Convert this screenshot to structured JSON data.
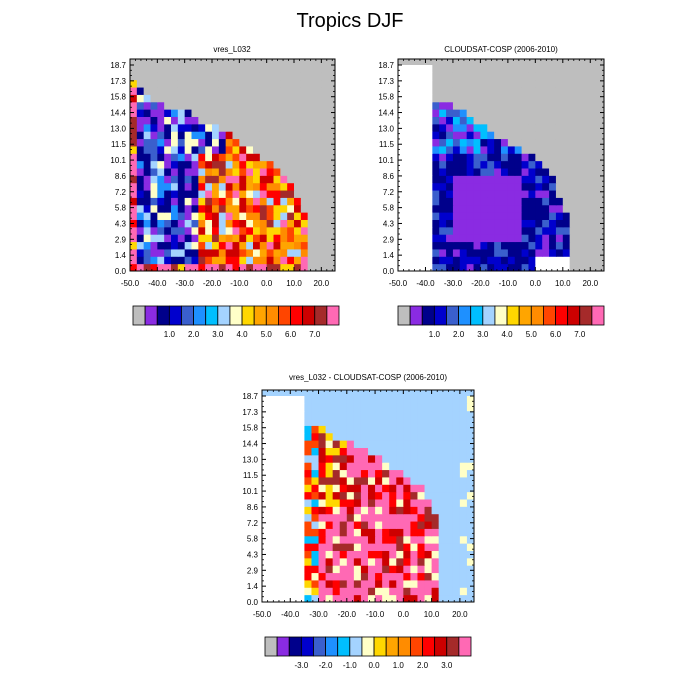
{
  "figure": {
    "title": "Tropics DJF"
  },
  "colors": {
    "palette": [
      "#bebebe",
      "#8a2be2",
      "#00008b",
      "#0000cd",
      "#3a5fcd",
      "#1e90ff",
      "#00bfff",
      "#a4d3ff",
      "#ffffc8",
      "#ffd700",
      "#ffa500",
      "#ff8c00",
      "#ff4500",
      "#ff0000",
      "#cd0000",
      "#a52a2a",
      "#ff69b4"
    ],
    "missing": "#bebebe",
    "outside": "#ffffff"
  },
  "chart_data": [
    {
      "type": "heatmap",
      "title": "vres_L032",
      "x_ticks": [
        "-50.0",
        "-40.0",
        "-30.0",
        "-20.0",
        "-10.0",
        "0.0",
        "10.0",
        "20.0"
      ],
      "y_ticks": [
        "0.0",
        "1.4",
        "2.9",
        "4.3",
        "5.8",
        "7.2",
        "8.6",
        "10.1",
        "11.5",
        "13.0",
        "14.4",
        "15.8",
        "17.3",
        "18.7"
      ],
      "xlim": [
        -50,
        25
      ],
      "x_edges": [
        -50,
        -47.5,
        -45,
        -42.5,
        -40,
        -37.5,
        -35,
        -32.5,
        -30,
        -27.5,
        -25,
        -22.5,
        -20,
        -17.5,
        -15,
        -12.5,
        -10,
        -7.5,
        -5,
        -2.5,
        0,
        2.5,
        5,
        7.5,
        10,
        12.5,
        15,
        17.5,
        20,
        22.5,
        25
      ],
      "colorbar_labels": [
        "1.0",
        "2.0",
        "3.0",
        "4.0",
        "5.0",
        "6.0",
        "7.0"
      ],
      "rows": [
        "---------------------",
        "------------------------------",
        "--------------------------",
        "----------------------",
        "--------------------",
        "----------------------",
        "-----------------------",
        "-------------------------",
        "---------------------------",
        "-----------------------------",
        "------------------------------",
        "------------------------------",
        "------------------------------",
        "------------------------------",
        "------------------------------",
        "------------------------------",
        "------------------------------",
        "------------------------------",
        "------------------------------",
        "------------------------------",
        "------------------------------",
        "------------------------------",
        "------------------------------",
        "------------------------------",
        "------------------------------",
        "------------------------------",
        "------------------------------",
        "------------------------------"
      ],
      "mask_upper": [
        [
          -50,
          17.8
        ],
        [
          -47,
          16.8
        ],
        [
          -42,
          15.8
        ],
        [
          -38,
          15.2
        ],
        [
          -33,
          14.6
        ],
        [
          -28,
          14.4
        ],
        [
          -24,
          13.4
        ],
        [
          -18,
          13.0
        ],
        [
          -13,
          12.4
        ],
        [
          -8,
          11.5
        ],
        [
          -5,
          10.8
        ],
        [
          0,
          10.2
        ],
        [
          5,
          9.2
        ],
        [
          8,
          8.4
        ],
        [
          10,
          7.2
        ],
        [
          12,
          6.5
        ],
        [
          15,
          4.8
        ],
        [
          15,
          0
        ]
      ],
      "mask_lower": 0,
      "grid_rows": 28
    },
    {
      "type": "heatmap",
      "title": "CLOUDSAT-COSP (2006-2010)",
      "x_ticks": [
        "-50.0",
        "-40.0",
        "-30.0",
        "-20.0",
        "-10.0",
        "0.0",
        "10.0",
        "20.0"
      ],
      "y_ticks": [
        "0.0",
        "1.4",
        "2.9",
        "4.3",
        "5.8",
        "7.2",
        "8.6",
        "10.1",
        "11.5",
        "13.0",
        "14.4",
        "15.8",
        "17.3",
        "18.7"
      ],
      "xlim": [
        -50,
        25
      ],
      "colorbar_labels": [
        "1.0",
        "2.0",
        "3.0",
        "4.0",
        "5.0",
        "6.0",
        "7.0"
      ],
      "mask_upper": [
        [
          -37,
          15.4
        ],
        [
          -30,
          15.0
        ],
        [
          -25,
          14.2
        ],
        [
          -20,
          13.4
        ],
        [
          -15,
          12.4
        ],
        [
          -10,
          11.5
        ],
        [
          -5,
          11.0
        ],
        [
          0,
          10.2
        ],
        [
          5,
          9.2
        ],
        [
          8,
          7.4
        ],
        [
          12,
          4.6
        ],
        [
          12,
          0
        ]
      ],
      "white_left_x": -37,
      "white_bottom_y": 1.0,
      "grid_rows": 28
    },
    {
      "type": "heatmap",
      "title": "vres_L032 - CLOUDSAT-COSP (2006-2010)",
      "x_ticks": [
        "-50.0",
        "-40.0",
        "-30.0",
        "-20.0",
        "-10.0",
        "0.0",
        "10.0",
        "20.0"
      ],
      "y_ticks": [
        "0.0",
        "1.4",
        "2.9",
        "4.3",
        "5.8",
        "7.2",
        "8.6",
        "10.1",
        "11.5",
        "13.0",
        "14.4",
        "15.8",
        "17.3",
        "18.7"
      ],
      "xlim": [
        -50,
        25
      ],
      "colorbar_labels": [
        "-3.0",
        "-2.0",
        "-1.0",
        "0.0",
        "1.0",
        "2.0",
        "3.0"
      ],
      "grid_rows": 28
    }
  ]
}
